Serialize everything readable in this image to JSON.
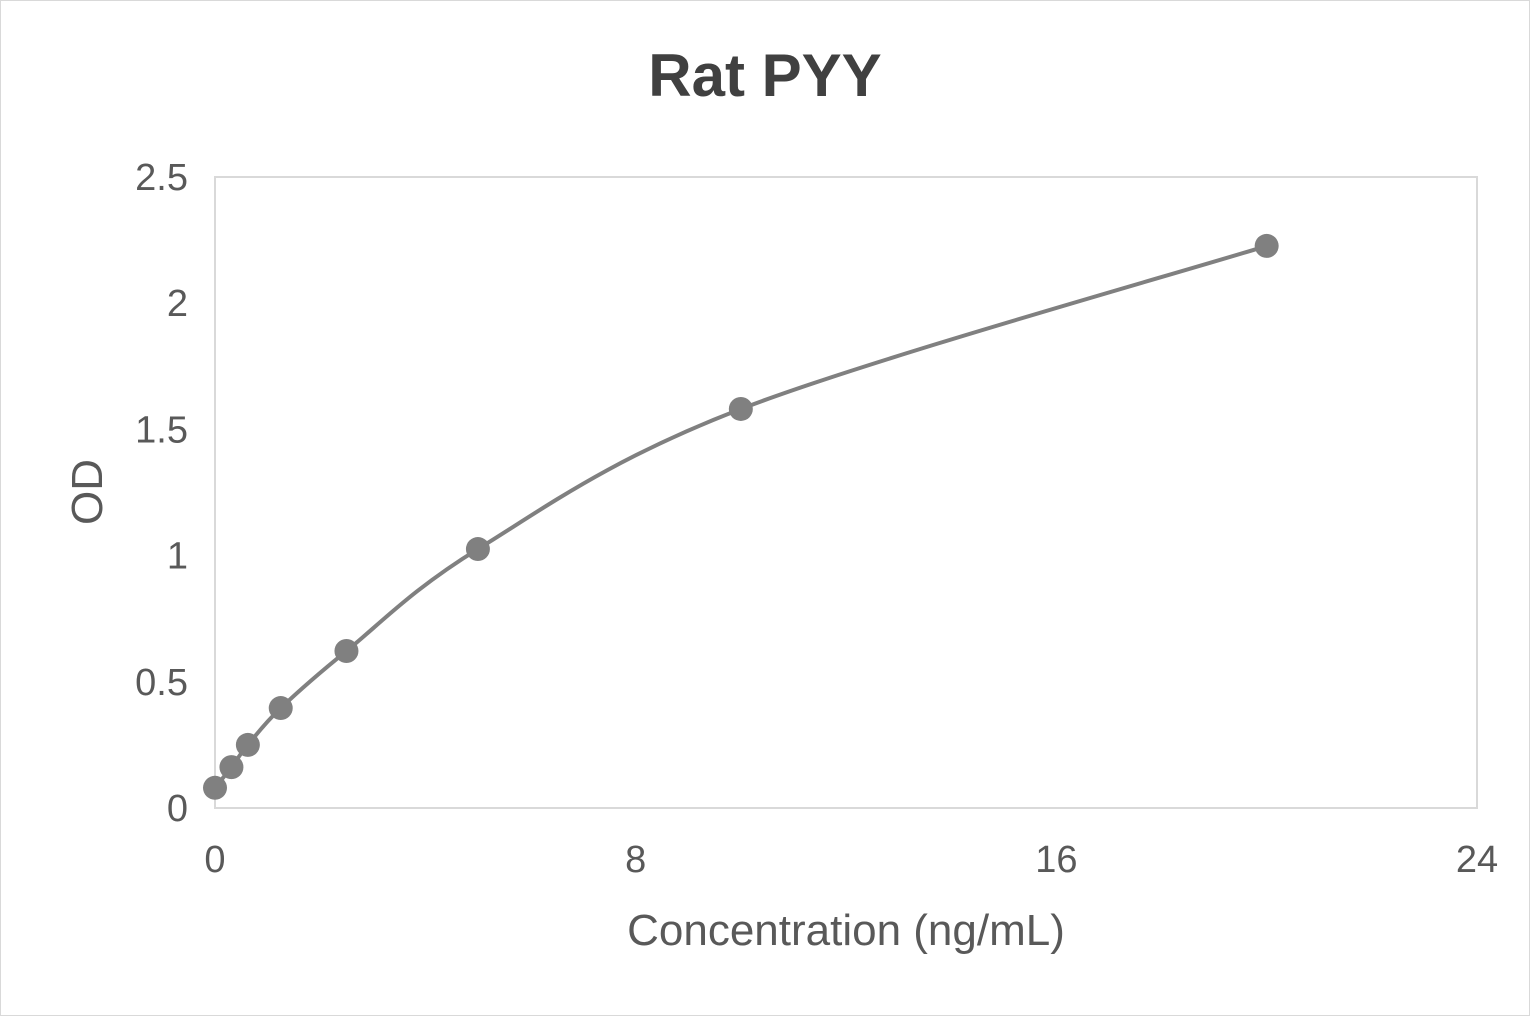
{
  "chart_data": {
    "type": "scatter",
    "title": "Rat PYY",
    "xlabel": "Concentration (ng/mL)",
    "ylabel": "OD",
    "xlim": [
      0,
      24
    ],
    "ylim": [
      0,
      2.5
    ],
    "xticks": [
      "0",
      "8",
      "16",
      "24"
    ],
    "yticks": [
      "0",
      "0.5",
      "1",
      "1.5",
      "2",
      "2.5"
    ],
    "grid": false,
    "smoothed_line": true,
    "colors": {
      "series": "#808080",
      "plot_border": "#d9d9d9"
    },
    "series": [
      {
        "x": [
          0,
          0.3125,
          0.625,
          1.25,
          2.5,
          5,
          10,
          20
        ],
        "y": [
          0.08,
          0.162,
          0.25,
          0.396,
          0.622,
          1.026,
          1.581,
          2.227
        ]
      }
    ]
  }
}
